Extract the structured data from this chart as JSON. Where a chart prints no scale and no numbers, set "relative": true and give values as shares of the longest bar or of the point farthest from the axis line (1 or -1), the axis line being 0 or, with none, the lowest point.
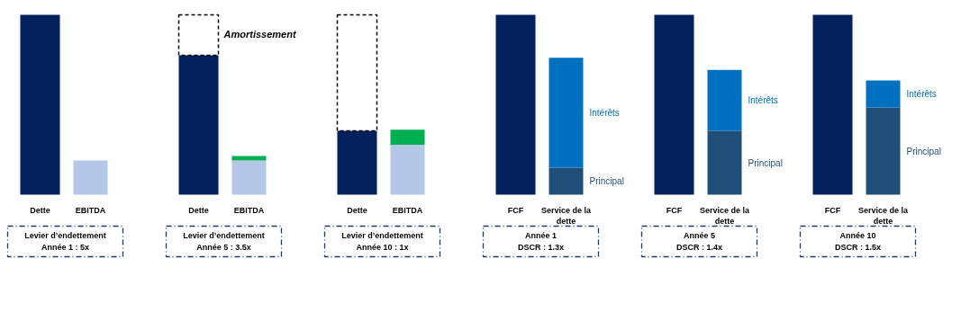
{
  "chart_data": [
    {
      "type": "bar",
      "relative": true,
      "stacked": true,
      "grid": false,
      "categories": [
        "Dette",
        "EBITDA"
      ],
      "series": [
        {
          "color": "#02205b",
          "values": [
            1,
            null
          ]
        },
        {
          "color": "#b4c7e7",
          "values": [
            null,
            0.19
          ]
        }
      ],
      "xlabel": "Levier d’endettement\nAnnée 1 : 5x"
    },
    {
      "type": "bar",
      "relative": true,
      "stacked": true,
      "grid": false,
      "categories": [
        "Dette",
        "EBITDA"
      ],
      "series": [
        {
          "color": "#02205b",
          "values": [
            0.775,
            null
          ]
        },
        {
          "color": "#000000",
          "line_style": "dashed",
          "values": [
            0.225,
            null
          ]
        },
        {
          "color": "#b4c7e7",
          "values": [
            null,
            0.19
          ]
        },
        {
          "color": "#00b050",
          "values": [
            null,
            0.025
          ]
        }
      ],
      "xlabel": "Levier d’endettement\nAnnée 5 : 3.5x",
      "annotations": [
        "Amortissement"
      ]
    },
    {
      "type": "bar",
      "relative": true,
      "stacked": true,
      "grid": false,
      "categories": [
        "Dette",
        "EBITDA"
      ],
      "series": [
        {
          "color": "#02205b",
          "values": [
            0.355,
            null
          ]
        },
        {
          "color": "#000000",
          "line_style": "dashed",
          "values": [
            0.645,
            null
          ]
        },
        {
          "color": "#b4c7e7",
          "values": [
            null,
            0.277
          ]
        },
        {
          "color": "#00b050",
          "values": [
            null,
            0.084
          ]
        }
      ],
      "xlabel": "Levier d’endettement\nAnnée 10 : 1x"
    },
    {
      "type": "bar",
      "relative": true,
      "stacked": true,
      "grid": false,
      "categories": [
        "FCF",
        "Service de la dette"
      ],
      "series": [
        {
          "color": "#02205b",
          "values": [
            1,
            null
          ]
        },
        {
          "name": "Principal",
          "color": "#1f4e79",
          "values": [
            null,
            0.15
          ]
        },
        {
          "name": "Intérêts",
          "color": "#0070c0",
          "values": [
            null,
            0.611
          ]
        }
      ],
      "xlabel": "Année 1\nDSCR : 1.3x"
    },
    {
      "type": "bar",
      "relative": true,
      "stacked": true,
      "grid": false,
      "categories": [
        "FCF",
        "Service de la dette"
      ],
      "series": [
        {
          "color": "#02205b",
          "values": [
            1,
            null
          ]
        },
        {
          "name": "Principal",
          "color": "#1f4e79",
          "values": [
            null,
            0.355
          ]
        },
        {
          "name": "Intérêts",
          "color": "#0070c0",
          "values": [
            null,
            0.339
          ]
        }
      ],
      "xlabel": "Année 5\nDSCR : 1.4x"
    },
    {
      "type": "bar",
      "relative": true,
      "stacked": true,
      "grid": false,
      "categories": [
        "FCF",
        "Service de la dette"
      ],
      "series": [
        {
          "color": "#02205b",
          "values": [
            1,
            null
          ]
        },
        {
          "name": "Principal",
          "color": "#1f4e79",
          "values": [
            null,
            0.485
          ]
        },
        {
          "name": "Intérêts",
          "color": "#0070c0",
          "values": [
            null,
            0.15
          ]
        }
      ],
      "xlabel": "Année 10\nDSCR : 1.5x"
    }
  ]
}
